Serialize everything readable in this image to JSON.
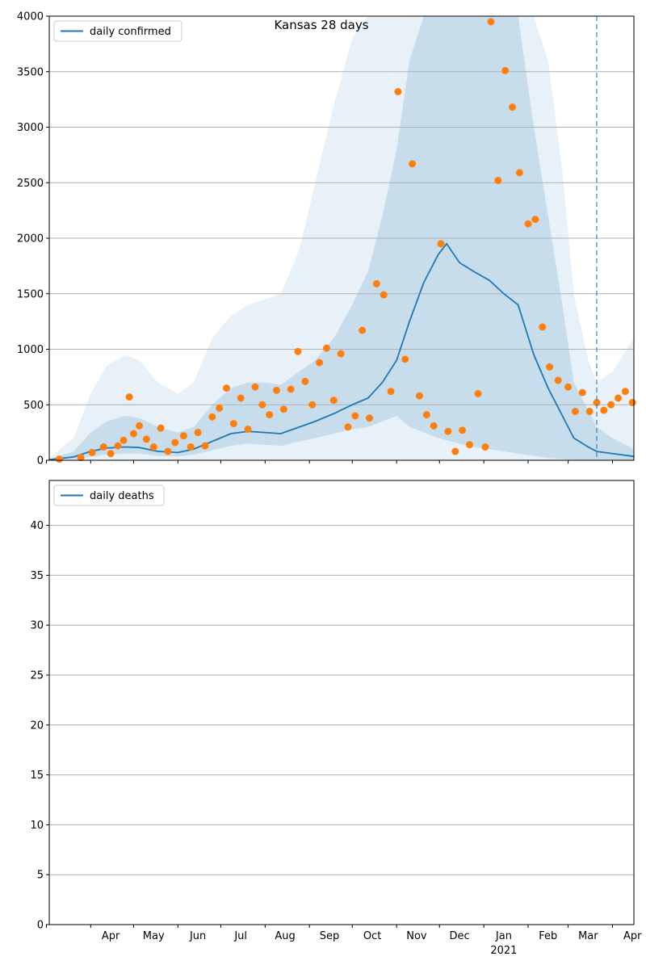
{
  "title": "Kansas 28 days",
  "colors": {
    "line": "#1f77b4",
    "dots": "#ff7f0e",
    "band": "#1f77b4",
    "grid": "#b0b0b0"
  },
  "x_axis": {
    "months": [
      "Apr",
      "May",
      "Jun",
      "Jul",
      "Aug",
      "Sep",
      "Oct",
      "Nov",
      "Dec",
      "Jan",
      "Feb",
      "Mar",
      "Apr"
    ],
    "year_label": "2021",
    "year_under_month": "Jan"
  },
  "chart_data": [
    {
      "type": "line",
      "legend": "daily confirmed",
      "legend_position": "top-left",
      "grid": true,
      "xlim": [
        "2020-03-03",
        "2021-04-16"
      ],
      "ylim": [
        0,
        4000
      ],
      "yticks": [
        0,
        500,
        1000,
        1500,
        2000,
        2500,
        3000,
        3500,
        4000
      ],
      "ytick_labels": [
        "0",
        "500",
        "1000",
        "1500",
        "2000",
        "2500",
        "3000",
        "3500",
        "4000"
      ],
      "forecast_start": "2021-03-21",
      "line": {
        "x": [
          "2020-03-03",
          "2020-03-20",
          "2020-04-01",
          "2020-04-12",
          "2020-04-25",
          "2020-05-05",
          "2020-05-18",
          "2020-06-01",
          "2020-06-12",
          "2020-06-25",
          "2020-07-08",
          "2020-07-20",
          "2020-08-01",
          "2020-08-12",
          "2020-08-25",
          "2020-09-05",
          "2020-09-18",
          "2020-10-01",
          "2020-10-12",
          "2020-10-22",
          "2020-11-01",
          "2020-11-10",
          "2020-11-20",
          "2020-11-30",
          "2020-12-06",
          "2020-12-15",
          "2020-12-25",
          "2021-01-05",
          "2021-01-15",
          "2021-01-25",
          "2021-02-05",
          "2021-02-15",
          "2021-02-25",
          "2021-03-05",
          "2021-03-15",
          "2021-03-21",
          "2021-04-01",
          "2021-04-16"
        ],
        "y": [
          5,
          30,
          80,
          110,
          120,
          115,
          80,
          70,
          100,
          170,
          240,
          260,
          250,
          240,
          300,
          350,
          420,
          500,
          560,
          700,
          900,
          1250,
          1600,
          1850,
          1950,
          1780,
          1700,
          1620,
          1500,
          1400,
          950,
          650,
          400,
          200,
          120,
          80,
          60,
          35
        ]
      },
      "band_inner": {
        "x": [
          "2020-03-03",
          "2020-03-20",
          "2020-04-01",
          "2020-04-12",
          "2020-04-25",
          "2020-05-05",
          "2020-05-18",
          "2020-06-01",
          "2020-06-12",
          "2020-06-25",
          "2020-07-08",
          "2020-07-20",
          "2020-08-01",
          "2020-08-12",
          "2020-08-25",
          "2020-09-05",
          "2020-09-18",
          "2020-10-01",
          "2020-10-12",
          "2020-10-22",
          "2020-11-01",
          "2020-11-10",
          "2020-11-20",
          "2020-11-30",
          "2020-12-06",
          "2020-12-15",
          "2020-12-25",
          "2021-01-05",
          "2021-01-15",
          "2021-01-25",
          "2021-02-05",
          "2021-02-15",
          "2021-02-25",
          "2021-03-05",
          "2021-03-15",
          "2021-03-21",
          "2021-04-01",
          "2021-04-16"
        ],
        "lower": [
          0,
          10,
          30,
          50,
          60,
          60,
          40,
          35,
          50,
          90,
          130,
          150,
          140,
          130,
          170,
          200,
          240,
          280,
          300,
          350,
          400,
          300,
          250,
          200,
          180,
          150,
          120,
          100,
          80,
          60,
          40,
          20,
          10,
          5,
          0,
          0,
          0,
          0
        ],
        "upper": [
          10,
          80,
          250,
          350,
          400,
          380,
          300,
          250,
          300,
          500,
          650,
          700,
          700,
          680,
          800,
          900,
          1100,
          1400,
          1700,
          2200,
          2800,
          3600,
          4000,
          4000,
          4000,
          4000,
          4000,
          4000,
          4000,
          4000,
          3000,
          2200,
          1400,
          700,
          450,
          300,
          200,
          100
        ]
      },
      "band_outer": {
        "x": [
          "2020-03-03",
          "2020-03-20",
          "2020-04-01",
          "2020-04-12",
          "2020-04-25",
          "2020-05-05",
          "2020-05-18",
          "2020-06-01",
          "2020-06-12",
          "2020-06-25",
          "2020-07-08",
          "2020-07-20",
          "2020-08-01",
          "2020-08-12",
          "2020-08-25",
          "2020-09-05",
          "2020-09-18",
          "2020-10-01",
          "2020-10-12",
          "2020-10-22",
          "2020-11-01",
          "2020-11-10",
          "2020-11-20",
          "2020-11-30",
          "2020-12-06",
          "2020-12-15",
          "2020-12-25",
          "2021-01-05",
          "2021-01-15",
          "2021-01-25",
          "2021-02-05",
          "2021-02-15",
          "2021-02-25",
          "2021-03-05",
          "2021-03-15",
          "2021-03-21",
          "2021-04-01",
          "2021-04-16"
        ],
        "lower": [
          0,
          0,
          0,
          0,
          0,
          0,
          0,
          0,
          0,
          0,
          0,
          0,
          0,
          0,
          0,
          0,
          0,
          0,
          0,
          0,
          0,
          0,
          0,
          0,
          0,
          0,
          0,
          0,
          0,
          0,
          0,
          0,
          0,
          0,
          0,
          0,
          0,
          0
        ],
        "upper": [
          20,
          200,
          600,
          850,
          950,
          900,
          700,
          600,
          700,
          1100,
          1300,
          1400,
          1450,
          1500,
          1900,
          2500,
          3200,
          3800,
          4000,
          4000,
          4000,
          4000,
          4000,
          4000,
          4000,
          4000,
          4000,
          4000,
          4000,
          4000,
          4000,
          3600,
          2600,
          1500,
          900,
          700,
          800,
          1100
        ]
      },
      "dots": {
        "x": [
          "2020-03-10",
          "2020-03-25",
          "2020-04-02",
          "2020-04-10",
          "2020-04-15",
          "2020-04-20",
          "2020-04-24",
          "2020-04-28",
          "2020-05-01",
          "2020-05-05",
          "2020-05-10",
          "2020-05-15",
          "2020-05-20",
          "2020-05-25",
          "2020-05-30",
          "2020-06-05",
          "2020-06-10",
          "2020-06-15",
          "2020-06-20",
          "2020-06-25",
          "2020-06-30",
          "2020-07-05",
          "2020-07-10",
          "2020-07-15",
          "2020-07-20",
          "2020-07-25",
          "2020-07-30",
          "2020-08-04",
          "2020-08-09",
          "2020-08-14",
          "2020-08-19",
          "2020-08-24",
          "2020-08-29",
          "2020-09-03",
          "2020-09-08",
          "2020-09-13",
          "2020-09-18",
          "2020-09-23",
          "2020-09-28",
          "2020-10-03",
          "2020-10-08",
          "2020-10-13",
          "2020-10-18",
          "2020-10-23",
          "2020-10-28",
          "2020-11-02",
          "2020-11-07",
          "2020-11-12",
          "2020-11-17",
          "2020-11-22",
          "2020-11-27",
          "2020-12-02",
          "2020-12-07",
          "2020-12-12",
          "2020-12-17",
          "2020-12-22",
          "2020-12-28",
          "2021-01-02",
          "2021-01-06",
          "2021-01-11",
          "2021-01-16",
          "2021-01-21",
          "2021-01-26",
          "2021-02-01",
          "2021-02-06",
          "2021-02-11",
          "2021-02-16",
          "2021-02-22",
          "2021-03-01",
          "2021-03-06",
          "2021-03-11",
          "2021-03-16",
          "2021-03-21",
          "2021-03-26",
          "2021-03-31",
          "2021-04-05",
          "2021-04-10",
          "2021-04-15"
        ],
        "y": [
          10,
          25,
          70,
          120,
          60,
          130,
          180,
          570,
          240,
          310,
          190,
          120,
          290,
          80,
          160,
          220,
          120,
          250,
          130,
          390,
          470,
          650,
          330,
          560,
          280,
          660,
          500,
          410,
          630,
          460,
          640,
          980,
          710,
          500,
          880,
          1010,
          540,
          960,
          300,
          400,
          1170,
          380,
          1590,
          1490,
          620,
          3320,
          910,
          2670,
          580,
          410,
          310,
          1950,
          260,
          80,
          270,
          140,
          600,
          120,
          3950,
          2520,
          3510,
          3180,
          2590,
          2130,
          2170,
          1200,
          840,
          720,
          660,
          440,
          610,
          440,
          520,
          450,
          500,
          560,
          620,
          520
        ]
      }
    },
    {
      "type": "line",
      "legend": "daily deaths",
      "legend_position": "top-left",
      "grid": true,
      "xlim": [
        "2020-03-03",
        "2021-04-16"
      ],
      "ylim": [
        0,
        44.5
      ],
      "yticks": [
        0,
        5,
        10,
        15,
        20,
        25,
        30,
        35,
        40
      ],
      "ytick_labels": [
        "0",
        "5",
        "10",
        "15",
        "20",
        "25",
        "30",
        "35",
        "40"
      ]
    }
  ]
}
